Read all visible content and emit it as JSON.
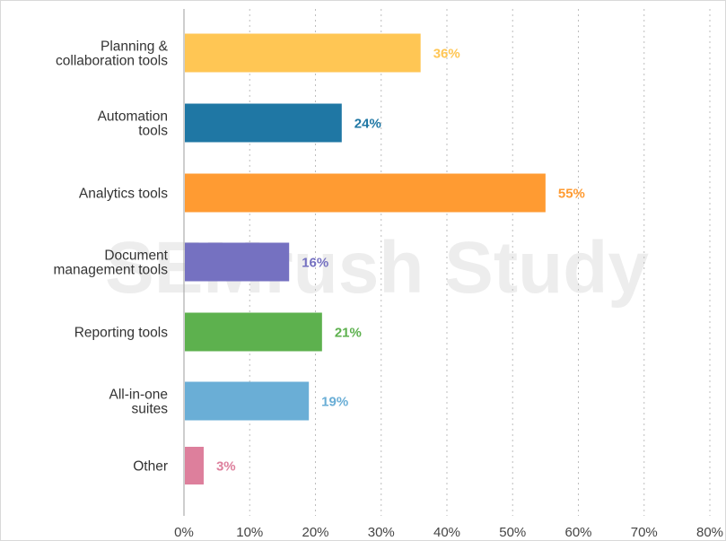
{
  "watermark": "SEMrush Study",
  "chart_data": {
    "type": "bar",
    "orientation": "horizontal",
    "categories": [
      [
        "Planning &",
        "collaboration tools"
      ],
      [
        "Automation",
        "tools"
      ],
      [
        "Analytics tools"
      ],
      [
        "Document",
        "management tools"
      ],
      [
        "Reporting tools"
      ],
      [
        "All-in-one",
        "suites"
      ],
      [
        "Other"
      ]
    ],
    "values": [
      36,
      24,
      55,
      16,
      21,
      19,
      3
    ],
    "value_labels": [
      "36%",
      "24%",
      "55%",
      "16%",
      "21%",
      "19%",
      "3%"
    ],
    "colors": [
      "#ffc654",
      "#1f77a4",
      "#ff9b32",
      "#7571c1",
      "#5db14e",
      "#6aaed6",
      "#dd7f9c"
    ],
    "xlim": [
      0,
      80
    ],
    "xticks": [
      0,
      10,
      20,
      30,
      40,
      50,
      60,
      70,
      80
    ],
    "xtick_labels": [
      "0%",
      "10%",
      "20%",
      "30%",
      "40%",
      "50%",
      "60%",
      "70%",
      "80%"
    ],
    "grid": "vertical dotted",
    "title": "",
    "xlabel": "",
    "ylabel": ""
  }
}
